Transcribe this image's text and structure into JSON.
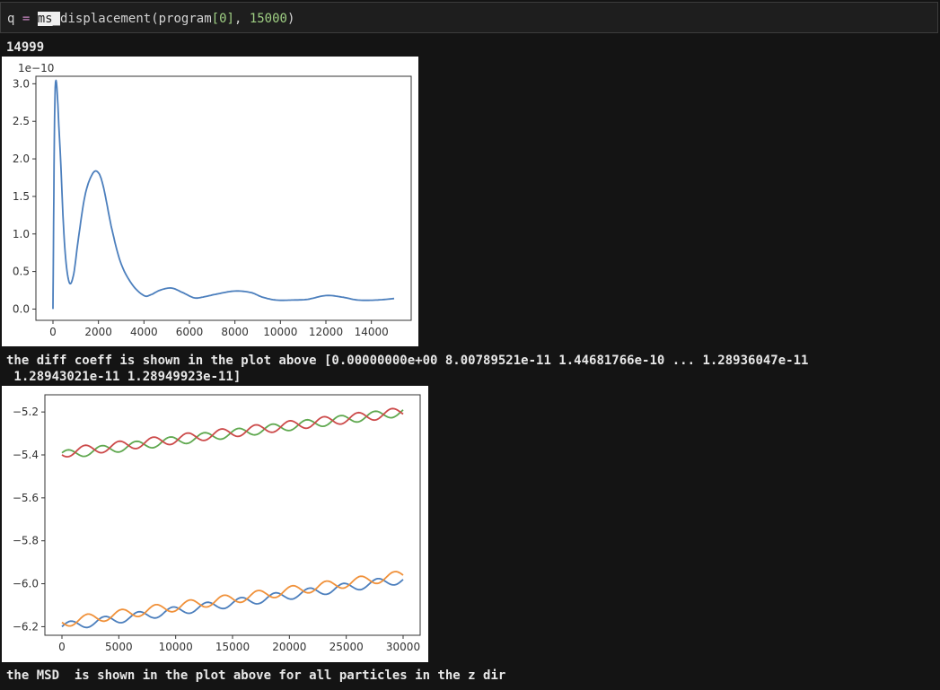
{
  "cell": {
    "var": "q",
    "op": "=",
    "fn_selected": "ms_",
    "fn_rest": "displacement(",
    "arg1": "program",
    "bracket_open": "[",
    "index": "0",
    "bracket_close": "]",
    "comma": ", ",
    "arg2": "15000",
    "close": ")"
  },
  "output": {
    "line1": "14999",
    "diff_line1": "the diff coeff is shown in the plot above [0.00000000e+00 8.00789521e-11 1.44681766e-10 ... 1.28936047e-11",
    "diff_line2": " 1.28943021e-11 1.28949923e-11]",
    "msd_line": "the MSD  is shown in the plot above for all particles in the z dir"
  },
  "chart_data": [
    {
      "type": "line",
      "title": "",
      "xlabel": "",
      "ylabel": "",
      "offset_label": "1e−10",
      "xlim": [
        -750,
        15750
      ],
      "ylim": [
        -0.15,
        3.1
      ],
      "xticks": [
        0,
        2000,
        4000,
        6000,
        8000,
        10000,
        12000,
        14000
      ],
      "xtick_labels": [
        "0",
        "2000",
        "4000",
        "6000",
        "8000",
        "10000",
        "12000",
        "14000"
      ],
      "yticks": [
        0.0,
        0.5,
        1.0,
        1.5,
        2.0,
        2.5,
        3.0
      ],
      "ytick_labels": [
        "0.0",
        "0.5",
        "1.0",
        "1.5",
        "2.0",
        "2.5",
        "3.0"
      ],
      "series": [
        {
          "color": "#4c7fbd",
          "x": [
            0,
            100,
            300,
            500,
            700,
            900,
            1100,
            1400,
            1700,
            1950,
            2200,
            2600,
            3000,
            3500,
            4000,
            4300,
            4700,
            5200,
            5700,
            6200,
            6600,
            7200,
            8000,
            8700,
            9200,
            9800,
            10500,
            11200,
            12000,
            12700,
            13400,
            14200,
            15000
          ],
          "y": [
            0.0,
            2.95,
            2.2,
            0.9,
            0.37,
            0.45,
            0.9,
            1.5,
            1.78,
            1.83,
            1.65,
            1.05,
            0.6,
            0.32,
            0.18,
            0.19,
            0.25,
            0.28,
            0.22,
            0.15,
            0.16,
            0.2,
            0.24,
            0.22,
            0.16,
            0.12,
            0.12,
            0.13,
            0.18,
            0.16,
            0.12,
            0.12,
            0.14
          ]
        }
      ]
    },
    {
      "type": "line",
      "title": "",
      "xlabel": "",
      "ylabel": "",
      "xlim": [
        -1500,
        31500
      ],
      "ylim": [
        -6.24,
        -5.12
      ],
      "xticks": [
        0,
        5000,
        10000,
        15000,
        20000,
        25000,
        30000
      ],
      "xtick_labels": [
        "0",
        "5000",
        "10000",
        "15000",
        "20000",
        "25000",
        "30000"
      ],
      "yticks": [
        -6.2,
        -6.0,
        -5.8,
        -5.6,
        -5.4,
        -5.2
      ],
      "ytick_labels": [
        "−6.2",
        "−6.0",
        "−5.8",
        "−5.6",
        "−5.4",
        "−5.2"
      ],
      "series": [
        {
          "color": "#4c7fbd",
          "base_start": -6.2,
          "base_end": -5.98,
          "amp": 0.02,
          "period": 3000,
          "phase": 0.0
        },
        {
          "color": "#f0913a",
          "base_start": -6.18,
          "base_end": -5.96,
          "amp": 0.022,
          "period": 3000,
          "phase": 3.14
        },
        {
          "color": "#5fa84f",
          "base_start": -5.4,
          "base_end": -5.2,
          "amp": 0.02,
          "period": 3000,
          "phase": 0.5
        },
        {
          "color": "#cc4a4a",
          "base_start": -5.39,
          "base_end": -5.2,
          "amp": 0.022,
          "period": 3000,
          "phase": 3.6
        }
      ]
    }
  ]
}
